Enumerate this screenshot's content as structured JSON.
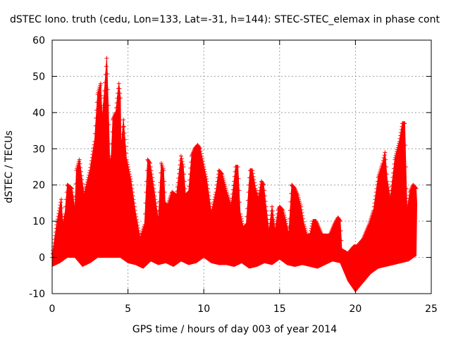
{
  "chart_data": {
    "type": "line",
    "title": "dSTEC Iono. truth (cedu, Lon=133, Lat=-31, h=144): STEC-STEC_elemax in phase cont",
    "xlabel": "GPS time / hours of day 003 of year 2014",
    "ylabel": "dSTEC  / TECUs",
    "xlim": [
      0,
      25
    ],
    "ylim": [
      -10,
      60
    ],
    "xticks": [
      0,
      5,
      10,
      15,
      20,
      25
    ],
    "yticks": [
      -10,
      0,
      10,
      20,
      30,
      40,
      50,
      60
    ],
    "xtick_labels": [
      "0",
      "5",
      "10",
      "15",
      "20",
      "25"
    ],
    "ytick_labels": [
      "-10",
      "0",
      "10",
      "20",
      "30",
      "40",
      "50",
      "60"
    ],
    "grid": true,
    "color": "#ff0000",
    "marker": "plus",
    "upper_envelope": {
      "x": [
        0.0,
        0.3,
        0.6,
        0.7,
        0.85,
        1.0,
        1.3,
        1.5,
        1.6,
        1.8,
        2.1,
        2.5,
        2.8,
        3.0,
        3.2,
        3.3,
        3.45,
        3.6,
        3.7,
        3.8,
        3.9,
        4.0,
        4.2,
        4.4,
        4.5,
        4.55,
        4.7,
        4.9,
        5.2,
        5.5,
        5.8,
        6.1,
        6.3,
        6.45,
        6.6,
        6.8,
        7.0,
        7.2,
        7.35,
        7.45,
        7.6,
        7.9,
        8.2,
        8.5,
        8.65,
        8.8,
        9.0,
        9.2,
        9.4,
        9.6,
        9.75,
        9.85,
        10.0,
        10.2,
        10.5,
        10.8,
        11.0,
        11.2,
        11.5,
        11.8,
        12.0,
        12.1,
        12.25,
        12.4,
        12.6,
        12.8,
        12.95,
        13.05,
        13.2,
        13.4,
        13.6,
        13.8,
        13.95,
        14.1,
        14.3,
        14.5,
        14.7,
        14.9,
        15.0,
        15.2,
        15.4,
        15.6,
        15.8,
        16.0,
        16.2,
        16.4,
        16.6,
        16.8,
        17.0,
        17.2,
        17.4,
        17.6,
        17.8,
        18.0,
        18.3,
        18.6,
        18.85,
        19.0,
        19.1,
        19.5,
        19.9,
        20.1,
        20.5,
        20.9,
        21.2,
        21.5,
        21.8,
        21.95,
        22.1,
        22.3,
        22.6,
        22.9,
        23.1,
        23.25,
        23.4,
        23.6,
        23.8,
        24.0,
        24.05
      ],
      "y": [
        0,
        9,
        16,
        9,
        12,
        20,
        19,
        13,
        24,
        27,
        17,
        24,
        32,
        45,
        48,
        38,
        46,
        55,
        42,
        26,
        28,
        38,
        40,
        48,
        44,
        30,
        38,
        27,
        21,
        12,
        5,
        9,
        27,
        26,
        22,
        16,
        10,
        26,
        24,
        15,
        14,
        18,
        17,
        28,
        25,
        17,
        18,
        28,
        30,
        31,
        30,
        28,
        25,
        21,
        12,
        18,
        24,
        23,
        18,
        14,
        21,
        25,
        25,
        12,
        8,
        9,
        18,
        24,
        24,
        19,
        16,
        21,
        20,
        14,
        7,
        14,
        7,
        13,
        14,
        13,
        10,
        6,
        20,
        19,
        17,
        14,
        9,
        6,
        6,
        10,
        10,
        8,
        6,
        6,
        6,
        9,
        11,
        10,
        2,
        1,
        3,
        3,
        5,
        9,
        13,
        22,
        26,
        29,
        21,
        16,
        27,
        32,
        37,
        37,
        13,
        18,
        20,
        19,
        15
      ]
    },
    "lower_envelope": {
      "x": [
        0.0,
        0.5,
        1.0,
        1.5,
        2.0,
        2.5,
        3.0,
        3.5,
        4.0,
        4.5,
        5.0,
        5.5,
        6.0,
        6.5,
        7.0,
        7.5,
        8.0,
        8.5,
        9.0,
        9.5,
        10.0,
        10.5,
        11.0,
        11.5,
        12.0,
        12.5,
        13.0,
        13.5,
        14.0,
        14.5,
        15.0,
        15.5,
        16.0,
        16.5,
        17.0,
        17.5,
        18.0,
        18.5,
        19.0,
        19.5,
        20.0,
        20.5,
        21.0,
        21.5,
        22.0,
        22.5,
        23.0,
        23.5,
        24.0
      ],
      "y": [
        -2.5,
        -1.5,
        0,
        0,
        -2.5,
        -1.5,
        0,
        0,
        0,
        0,
        -1.5,
        -2.0,
        -3.0,
        -1.0,
        -2.0,
        -1.5,
        -2.5,
        -1.0,
        -2.0,
        -1.5,
        0,
        -1.5,
        -2.0,
        -2.0,
        -2.5,
        -1.5,
        -3.0,
        -2.5,
        -1.5,
        -2.0,
        -0.5,
        -2.0,
        -2.5,
        -2.0,
        -2.5,
        -3.0,
        -2.0,
        -1.0,
        -1.5,
        -6.5,
        -9.5,
        -7.0,
        -4.5,
        -3.0,
        -2.5,
        -2.0,
        -1.5,
        -1.0,
        0.5
      ]
    }
  }
}
